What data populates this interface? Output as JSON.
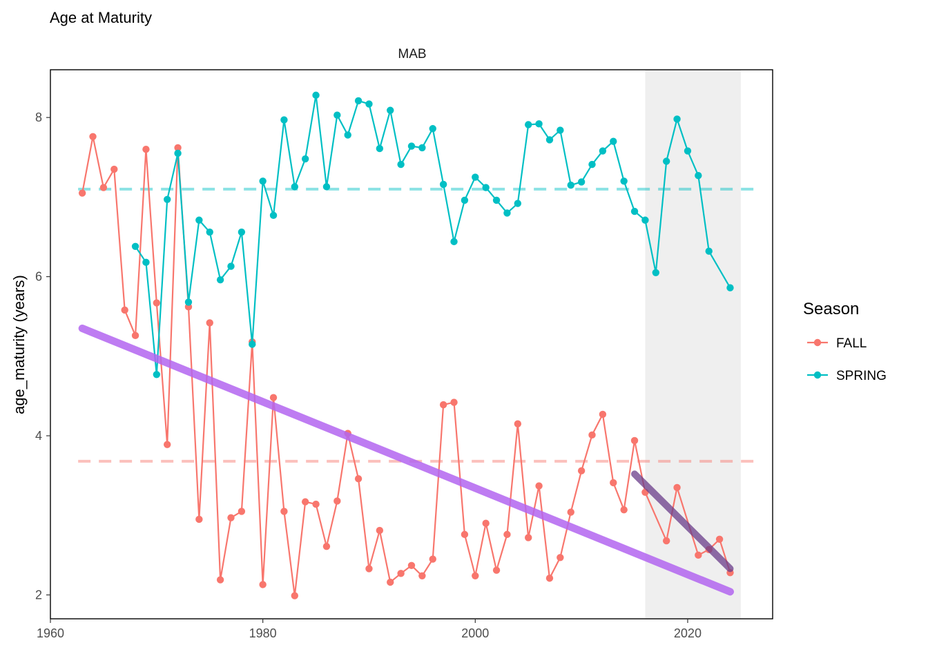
{
  "chart_data": {
    "type": "line",
    "title": "Age at Maturity",
    "facet_label": "MAB",
    "xlabel": "",
    "ylabel": "age_maturity (years)",
    "xlim": [
      1960,
      2028
    ],
    "ylim": [
      1.7,
      8.6
    ],
    "x_ticks": [
      1960,
      1980,
      2000,
      2020
    ],
    "y_ticks": [
      2,
      4,
      6,
      8
    ],
    "grid": false,
    "shaded_region": [
      2016,
      2025
    ],
    "legend": {
      "title": "Season",
      "position": "right"
    },
    "colors": {
      "FALL": "#F8766D",
      "SPRING": "#00BFC4",
      "long_trend": "#B366F0",
      "short_trend": "#6A3D8A",
      "shade": "#EFEFEF"
    },
    "series": [
      {
        "name": "FALL",
        "color": "#F8766D",
        "x": [
          1963,
          1964,
          1965,
          1966,
          1967,
          1968,
          1969,
          1970,
          1971,
          1972,
          1973,
          1974,
          1975,
          1976,
          1977,
          1978,
          1979,
          1980,
          1981,
          1982,
          1983,
          1984,
          1985,
          1986,
          1987,
          1988,
          1989,
          1990,
          1991,
          1992,
          1993,
          1994,
          1995,
          1996,
          1997,
          1998,
          1999,
          2000,
          2001,
          2002,
          2003,
          2004,
          2005,
          2006,
          2007,
          2008,
          2009,
          2010,
          2011,
          2012,
          2013,
          2014,
          2015,
          2016,
          2018,
          2019,
          2021,
          2022,
          2023,
          2024
        ],
        "y": [
          7.05,
          7.76,
          7.12,
          7.35,
          5.58,
          5.26,
          7.6,
          5.67,
          3.89,
          7.62,
          5.62,
          2.95,
          5.42,
          2.19,
          2.97,
          3.05,
          5.18,
          2.13,
          4.48,
          3.05,
          1.99,
          3.17,
          3.14,
          2.61,
          3.18,
          4.03,
          3.46,
          2.33,
          2.81,
          2.16,
          2.27,
          2.37,
          2.24,
          2.45,
          4.39,
          4.42,
          2.76,
          2.24,
          2.9,
          2.31,
          2.76,
          4.15,
          2.72,
          3.37,
          2.21,
          2.47,
          3.04,
          3.56,
          4.01,
          4.27,
          3.41,
          3.07,
          3.94,
          3.29,
          2.68,
          3.35,
          2.5,
          2.57,
          2.7,
          2.28
        ]
      },
      {
        "name": "SPRING",
        "color": "#00BFC4",
        "x": [
          1968,
          1969,
          1970,
          1971,
          1972,
          1973,
          1974,
          1975,
          1976,
          1977,
          1978,
          1979,
          1980,
          1981,
          1982,
          1983,
          1984,
          1985,
          1986,
          1987,
          1988,
          1989,
          1990,
          1991,
          1992,
          1993,
          1994,
          1995,
          1996,
          1997,
          1998,
          1999,
          2000,
          2001,
          2002,
          2003,
          2004,
          2005,
          2006,
          2007,
          2008,
          2009,
          2010,
          2011,
          2012,
          2013,
          2014,
          2015,
          2016,
          2017,
          2018,
          2019,
          2020,
          2021,
          2022,
          2024
        ],
        "y": [
          6.38,
          6.18,
          4.77,
          6.97,
          7.55,
          5.68,
          6.71,
          6.56,
          5.96,
          6.13,
          6.56,
          5.15,
          7.2,
          6.77,
          7.97,
          7.13,
          7.48,
          8.28,
          7.13,
          8.03,
          7.78,
          8.21,
          8.17,
          7.61,
          8.09,
          7.41,
          7.64,
          7.62,
          7.86,
          7.16,
          6.44,
          6.96,
          7.25,
          7.12,
          6.96,
          6.8,
          6.92,
          7.91,
          7.92,
          7.72,
          7.84,
          7.15,
          7.19,
          7.41,
          7.58,
          7.7,
          7.2,
          6.82,
          6.71,
          6.05,
          7.45,
          7.98,
          7.58,
          7.27,
          6.32,
          5.86
        ]
      }
    ],
    "reference_lines": [
      {
        "series": "FALL",
        "y": 3.68
      },
      {
        "series": "SPRING",
        "y": 7.1
      }
    ],
    "trend_lines": [
      {
        "label": "long_trend",
        "x": [
          1963,
          2024
        ],
        "y": [
          5.35,
          2.04
        ]
      },
      {
        "label": "short_trend",
        "x": [
          2015,
          2024
        ],
        "y": [
          3.52,
          2.33
        ]
      }
    ]
  }
}
